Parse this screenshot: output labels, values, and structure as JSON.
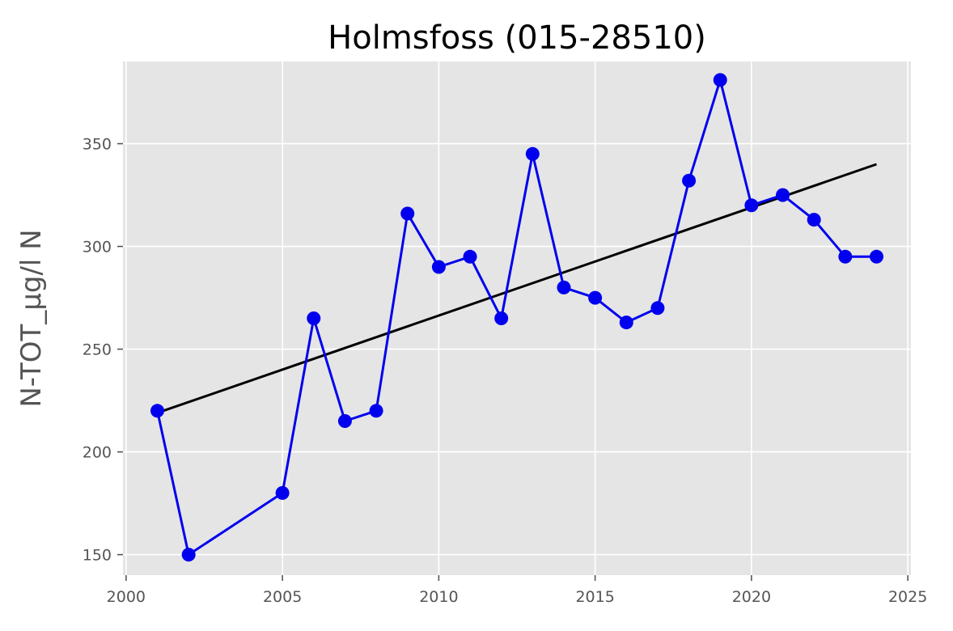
{
  "chart_data": {
    "type": "line",
    "title": "Holmsfoss (015-28510)",
    "xlabel": "",
    "ylabel": "N-TOT_µg/l N",
    "xlim": [
      1999.9,
      2025.1
    ],
    "ylim": [
      140,
      390
    ],
    "x_ticks": [
      2000,
      2005,
      2010,
      2015,
      2020,
      2025
    ],
    "y_ticks": [
      150,
      200,
      250,
      300,
      350
    ],
    "grid": true,
    "legend": "none",
    "series": [
      {
        "kind": "line+markers",
        "color": "#0000ee",
        "points": [
          {
            "x": 2001,
            "y": 220
          },
          {
            "x": 2002,
            "y": 150
          },
          {
            "x": 2005,
            "y": 180
          },
          {
            "x": 2006,
            "y": 265
          },
          {
            "x": 2007,
            "y": 215
          },
          {
            "x": 2008,
            "y": 220
          },
          {
            "x": 2009,
            "y": 316
          },
          {
            "x": 2010,
            "y": 290
          },
          {
            "x": 2011,
            "y": 295
          },
          {
            "x": 2012,
            "y": 265
          },
          {
            "x": 2013,
            "y": 345
          },
          {
            "x": 2014,
            "y": 280
          },
          {
            "x": 2015,
            "y": 275
          },
          {
            "x": 2016,
            "y": 263
          },
          {
            "x": 2017,
            "y": 270
          },
          {
            "x": 2018,
            "y": 332
          },
          {
            "x": 2019,
            "y": 381
          },
          {
            "x": 2020,
            "y": 320
          },
          {
            "x": 2021,
            "y": 325
          },
          {
            "x": 2022,
            "y": 313
          },
          {
            "x": 2023,
            "y": 295
          },
          {
            "x": 2024,
            "y": 295
          }
        ]
      },
      {
        "kind": "trend-line",
        "color": "#000000",
        "points": [
          {
            "x": 2001,
            "y": 219
          },
          {
            "x": 2024,
            "y": 340
          }
        ]
      }
    ],
    "colors": {
      "background": "#e5e5e5",
      "grid": "#ffffff",
      "axis_text": "#555555",
      "title_text": "#000000"
    }
  }
}
